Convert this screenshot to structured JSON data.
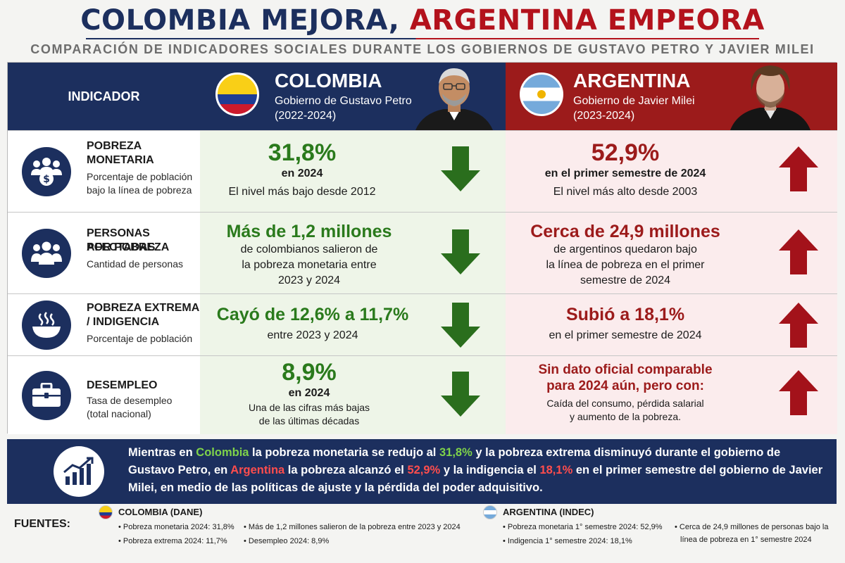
{
  "title": {
    "part1": "COLOMBIA MEJORA,",
    "part2": "ARGENTINA EMPEORA"
  },
  "subtitle": "COMPARACIÓN DE INDICADORES SOCIALES DURANTE LOS GOBIERNOS DE GUSTAVO PETRO Y JAVIER MILEI",
  "header": {
    "indicator_label": "INDICADOR",
    "colombia": {
      "name": "COLOMBIA",
      "gov": "Gobierno de Gustavo Petro",
      "years": "(2022-2024)"
    },
    "argentina": {
      "name": "ARGENTINA",
      "gov": "Gobierno de Javier Milei",
      "years": "(2023-2024)"
    }
  },
  "rows": [
    {
      "title1": "POBREZA",
      "title2": "MONETARIA",
      "desc1": "Porcentaje de población",
      "desc2": "bajo la línea de pobreza",
      "icon": "people-money-icon",
      "col": {
        "main": "31,8%",
        "sub": "en 2024",
        "note": "El nivel más bajo desde 2012"
      },
      "arg": {
        "main": "52,9%",
        "sub": "en el primer semestre de 2024",
        "note": "El nivel más alto desde 2003"
      }
    },
    {
      "title1": "PERSONAS AFECTADAS",
      "title2": "POR POBREZA",
      "desc1": "Cantidad de personas",
      "icon": "people-group-icon",
      "col": {
        "main": "Más de 1,2 millones",
        "l1": "de colombianos salieron de",
        "l2": "la pobreza monetaria entre",
        "l3": "2023 y 2024"
      },
      "arg": {
        "main": "Cerca de 24,9 millones",
        "l1": "de argentinos quedaron bajo",
        "l2": "la línea de pobreza en el primer",
        "l3": "semestre de 2024"
      }
    },
    {
      "title1": "POBREZA EXTREMA",
      "title2": "/ INDIGENCIA",
      "desc1": "Porcentaje de población",
      "icon": "bowl-icon",
      "col": {
        "main": "Cayó de 12,6% a 11,7%",
        "sub": "entre 2023 y 2024"
      },
      "arg": {
        "main": "Subió a 18,1%",
        "sub": "en el primer semestre de 2024"
      }
    },
    {
      "title1": "DESEMPLEO",
      "desc1": "Tasa de desempleo",
      "desc2": "(total nacional)",
      "icon": "briefcase-icon",
      "col": {
        "main": "8,9%",
        "sub": "en 2024",
        "l1": "Una de las cifras más bajas",
        "l2": "de las últimas décadas"
      },
      "arg": {
        "main1": "Sin dato oficial comparable",
        "main2": "para 2024 aún, pero con:",
        "l1": "Caída del consumo, pérdida salarial",
        "l2": "y aumento de la pobreza."
      }
    }
  ],
  "summary": {
    "s1": "Mientras en ",
    "colombia": "Colombia",
    "s2": " la pobreza monetaria se redujo al ",
    "v1": "31,8%",
    "s3": " y la pobreza extrema disminuyó durante el gobierno de Gustavo Petro, en ",
    "argentina": "Argentina",
    "s4": " la pobreza alcanzó el ",
    "v2": "52,9%",
    "s5": " y la indigencia el ",
    "v3": "18,1%",
    "s6": " en el primer semestre del gobierno de Javier Milei, en medio de las políticas de ajuste y la pérdida del poder adquisitivo."
  },
  "sources": {
    "label": "FUENTES:",
    "colombia_title": "COLOMBIA (DANE)",
    "colombia_items": [
      "• Pobreza monetaria 2024: 31,8%",
      "• Pobreza extrema 2024: 11,7%",
      "• Más de 1,2 millones salieron de la pobreza entre 2023 y 2024",
      "• Desempleo 2024: 8,9%"
    ],
    "argentina_title": "ARGENTINA (INDEC)",
    "argentina_items": [
      "• Pobreza monetaria 1° semestre 2024: 52,9%",
      "• Indigencia 1° semestre 2024: 18,1%",
      "• Cerca de 24,9 millones de personas bajo la",
      "línea de pobreza en 1° semestre 2024"
    ]
  },
  "colors": {
    "navy": "#1c2f5e",
    "red": "#9c1b1b",
    "green": "#2a7a1c",
    "green_bg": "#eef5e8",
    "red_bg": "#fbeced"
  }
}
